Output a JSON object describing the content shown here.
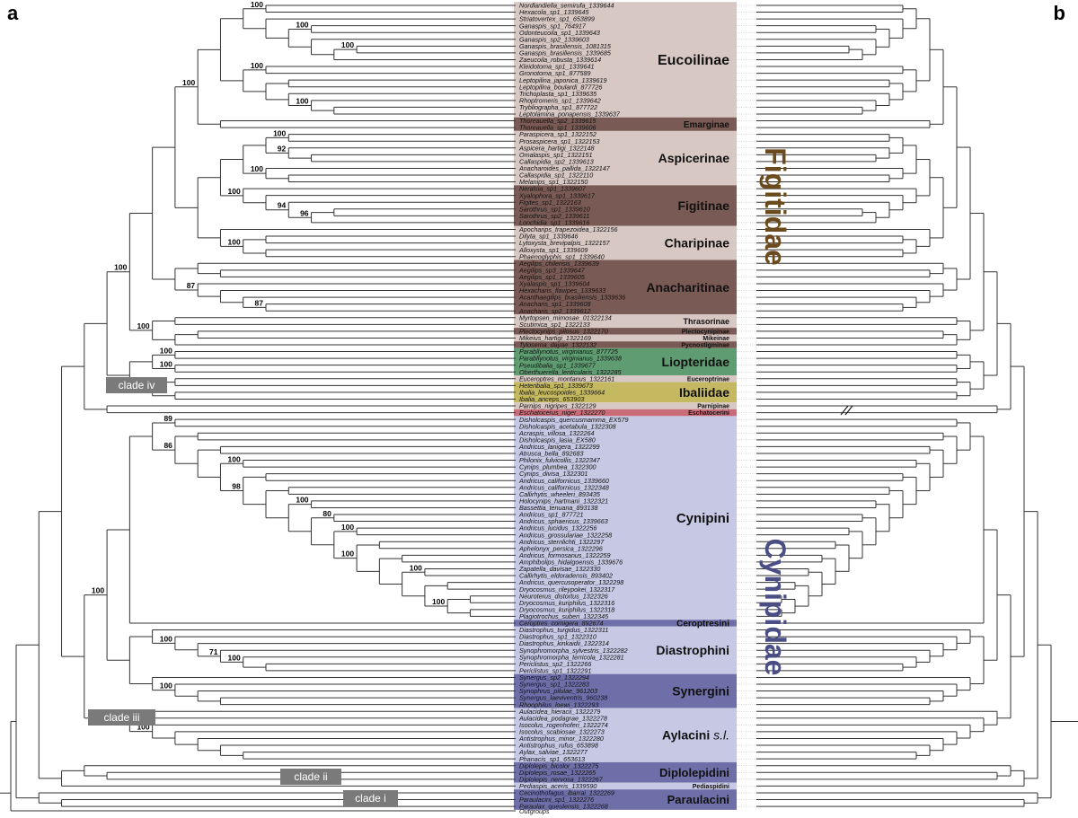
{
  "panel_labels": {
    "a": "a",
    "b": "b"
  },
  "families": [
    {
      "name": "Figitidae",
      "color": "#6b4b1e"
    },
    {
      "name": "Cynipidae",
      "color": "#4a4e84"
    }
  ],
  "clade_labels": [
    "clade i",
    "clade ii",
    "clade iii",
    "clade iv"
  ],
  "outgroups_label": "Outgroups",
  "taxa": [
    "Nordlandiella_semirufa_1339644",
    "Hexacola_sp1_1339645",
    "Striatovertex_sp1_653899",
    "Ganaspis_sp1_764917",
    "Odonteucoila_sp1_1339643",
    "Ganaspis_sp2_1339603",
    "Ganaspis_brasiliensis_1081315",
    "Ganaspis_brasiliensis_1339685",
    "Zaeucoila_robusta_1339614",
    "Kleidotoma_sp1_1339641",
    "Gronotoma_sp1_877589",
    "Leptopilina_japonica_1339619",
    "Leptopilina_boulardi_877726",
    "Trichoplasta_sp1_1339635",
    "Rhoptromeris_sp1_1339642",
    "Trybliographa_sp1_877722",
    "Leptolamina_ponapensis_1339637",
    "Thoreauella_sp2_1339615",
    "Thoreauella_sp1_1339606",
    "Paraspicera_sp1_1322152",
    "Prosaspicera_sp1_1322153",
    "Aspicera_hartigi_1322148",
    "Omalaspis_sp1_1322151",
    "Callaspidia_sp2_1339613",
    "Anacharoides_pallida_1322147",
    "Callaspidia_sp1_1322110",
    "Melanips_sp1_1322150",
    "Neralsia_sp1_1339607",
    "Xyalophora_sp1_1339617",
    "Figites_sp1_1322163",
    "Sarothrus_sp1_1339610",
    "Sarothrus_sp2_1339611",
    "Lonchidia_sp1_1339616",
    "Apocharips_trapezoidea_1322156",
    "Dilyta_sp1_1339646",
    "Lytoxysta_brevipalpis_1322157",
    "Alloxysta_sp1_1339609",
    "Phaenoglyphis_sp1_1339640",
    "Aegilips_chilensis_1339639",
    "Aegilips_sp3_1339647",
    "Aegilips_sp1_1339605",
    "Xyalaspis_sp1_1339604",
    "Hexacharis_flavipes_1339633",
    "Acanthaegilips_brasiliensis_1339636",
    "Anacharis_sp1_1339608",
    "Anacharis_sp2_1339612",
    "Myrtopsen_mimosae_01322134",
    "Scutimica_sp1_1322133",
    "Plectocynips_pilosus_1322170",
    "Mikeius_hartigi_1322169",
    "Tylosema_dayae_1322132",
    "Parabllynotus_virginianus_877725",
    "Parabllynotus_virginianus_1339638",
    "Pseudibalia_sp1_1339677",
    "Oberthuerella_lenticularis_1322285",
    "Euceroptres_montanus_1322161",
    "Heteribalia_sp1_1339673",
    "Ibalia_leucospoides_1339664",
    "Ibalia_anceps_653903",
    "Parnips_nigripes_1322129",
    "Eschatocerus_niger_1322270",
    "Disholcaspis_quercusmamma_EX579",
    "Disholcaspis_acetabula_1322308",
    "Acraspis_villosa_1322264",
    "Disholcaspis_lasia_EX580",
    "Andricus_lanigera_1322299",
    "Atrusca_bella_892683",
    "Philonix_fulvicollis_1322347",
    "Cynips_plumbea_1322300",
    "Cynips_divisa_1322301",
    "Andricus_californicus_1339660",
    "Andricus_californicus_1322348",
    "Callirhytis_wheeleri_893435",
    "Holocynips_hartmani_1322321",
    "Bassettia_tenuana_893138",
    "Andricus_sp1_877721",
    "Andricus_sphaericus_1339663",
    "Andricus_lucidus_1322256",
    "Andricus_grossulariae_1322258",
    "Andricus_sternlichti_1322297",
    "Aphelonyx_persica_1322296",
    "Andricus_formosanus_1322259",
    "Amphibolips_hidalgoensis_1339676",
    "Zapatella_davisae_1322330",
    "Callirhytis_eldoradensis_893402",
    "Andricus_quercusoperator_1322298",
    "Dryocosmus_rileypokei_1322317",
    "Neuroterus_distortus_1322326",
    "Dryocosmus_kuriphilus_1322316",
    "Dryocosmus_kuriphilus_1322318",
    "Plagiotrochus_suberi_1322345",
    "Ceroptres_cornigera_892674",
    "Diastrophus_turgidus_1322311",
    "Diastrophus_sp1_1322310",
    "Diastrophus_kinkaidii_1322314",
    "Synophromorpha_sylvestris_1322282",
    "Synophromorpha_terricola_1322281",
    "Periclistus_sp2_1322266",
    "Periclistus_sp1_1322291",
    "Synergus_sp2_1322294",
    "Synergus_sp1_1322283",
    "Synophrus_pilulae_961203",
    "Synergus_laeviventris_960238",
    "Rhoophilus_loewi_1322293",
    "Aulacidea_hieracii_1322279",
    "Aulacidea_podagrae_1322278",
    "Isocolus_rogenhoferi_1322274",
    "Isocolus_scabiosae_1322273",
    "Antistrophus_minor_1322280",
    "Antistrophus_rufus_653898",
    "Aylax_salviae_1322277",
    "Phanacis_sp1_653613",
    "Diplolepis_bicolor_1322275",
    "Diplolepis_rosae_1322265",
    "Diplolepis_nervosa_1322267",
    "Pediaspis_aceris_1339590",
    "Cecinothofagus_ibarrai_1322269",
    "Paraulacini_sp1_1322276",
    "Paraulax_queulensis_1322268"
  ],
  "groups": [
    {
      "name": "Eucoilinae",
      "first": 0,
      "last": 16,
      "fill": "#d8c8c4",
      "size": 16
    },
    {
      "name": "Emarginae",
      "first": 17,
      "last": 18,
      "fill": "#7a5a54",
      "size": 10
    },
    {
      "name": "Aspicerinae",
      "first": 19,
      "last": 26,
      "fill": "#d8c8c4",
      "size": 14
    },
    {
      "name": "Figitinae",
      "first": 27,
      "last": 32,
      "fill": "#7a5a54",
      "size": 14
    },
    {
      "name": "Charipinae",
      "first": 33,
      "last": 37,
      "fill": "#d8c8c4",
      "size": 14
    },
    {
      "name": "Anacharitinae",
      "first": 38,
      "last": 45,
      "fill": "#7a5a54",
      "size": 14
    },
    {
      "name": "Thrasorinae",
      "first": 46,
      "last": 47,
      "fill": "#d8c8c4",
      "size": 9
    },
    {
      "name": "Plectocynipinae",
      "first": 48,
      "last": 48,
      "fill": "#7a5a54",
      "size": 7
    },
    {
      "name": "Mikeinae",
      "first": 49,
      "last": 49,
      "fill": "#d8c8c4",
      "size": 7
    },
    {
      "name": "Pycnostigminae",
      "first": 50,
      "last": 50,
      "fill": "#7a5a54",
      "size": 7
    },
    {
      "name": "Liopteridae",
      "first": 51,
      "last": 54,
      "fill": "#5f9c72",
      "size": 14
    },
    {
      "name": "Euceroptrinae",
      "first": 55,
      "last": 55,
      "fill": "#d8c8c4",
      "size": 7
    },
    {
      "name": "Ibaliidae",
      "first": 56,
      "last": 58,
      "fill": "#c4b860",
      "size": 14
    },
    {
      "name": "Parnipinae",
      "first": 59,
      "last": 59,
      "fill": "#d8c8c4",
      "size": 7
    },
    {
      "name": "Eschatocerini",
      "first": 60,
      "last": 60,
      "fill": "#c96c78",
      "size": 7
    },
    {
      "name": "Cynipini",
      "first": 61,
      "last": 90,
      "fill": "#c7c8e4",
      "size": 15
    },
    {
      "name": "Ceroptresini",
      "first": 91,
      "last": 91,
      "fill": "#6e6fa8",
      "size": 10
    },
    {
      "name": "Diastrophini",
      "first": 92,
      "last": 98,
      "fill": "#c7c8e4",
      "size": 14
    },
    {
      "name": "Synergini",
      "first": 99,
      "last": 103,
      "fill": "#6e6fa8",
      "size": 14
    },
    {
      "name": "Aylacini s.l.",
      "first": 104,
      "last": 111,
      "fill": "#c7c8e4",
      "size": 14
    },
    {
      "name": "Diplolepidini",
      "first": 112,
      "last": 114,
      "fill": "#6e6fa8",
      "size": 13
    },
    {
      "name": "Pediaspidini",
      "first": 115,
      "last": 115,
      "fill": "#c7c8e4",
      "size": 7
    },
    {
      "name": "Paraulacini",
      "first": 116,
      "last": 118,
      "fill": "#6e6fa8",
      "size": 13
    }
  ],
  "support_values": [
    {
      "value": "100"
    },
    {
      "value": "100"
    },
    {
      "value": "100"
    },
    {
      "value": "100"
    },
    {
      "value": "100"
    },
    {
      "value": "100"
    },
    {
      "value": "100"
    },
    {
      "value": "92"
    },
    {
      "value": "100"
    },
    {
      "value": "100"
    },
    {
      "value": "94"
    },
    {
      "value": "96"
    },
    {
      "value": "100"
    },
    {
      "value": "100"
    },
    {
      "value": "87"
    },
    {
      "value": "87"
    },
    {
      "value": "100"
    },
    {
      "value": "100"
    },
    {
      "value": "100"
    },
    {
      "value": "87"
    },
    {
      "value": "89"
    },
    {
      "value": "86"
    },
    {
      "value": "100"
    },
    {
      "value": "98"
    },
    {
      "value": "100"
    },
    {
      "value": "80"
    },
    {
      "value": "100"
    },
    {
      "value": "100"
    },
    {
      "value": "100"
    },
    {
      "value": "100"
    },
    {
      "value": "100"
    },
    {
      "value": "100"
    },
    {
      "value": "71"
    },
    {
      "value": "100"
    },
    {
      "value": "100"
    },
    {
      "value": "100"
    },
    {
      "value": "100"
    }
  ]
}
